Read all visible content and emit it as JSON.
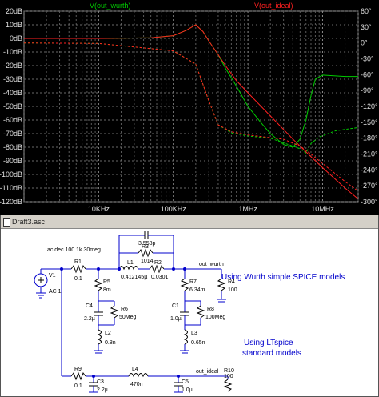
{
  "chart_data": {
    "type": "line",
    "x_scale": "log",
    "xlim": [
      "1KHz",
      "30MHz"
    ],
    "x_ticks": [
      "10KHz",
      "100KHz",
      "1MHz",
      "10MHz"
    ],
    "y_left_ticks": [
      "20dB",
      "10dB",
      "0dB",
      "-10dB",
      "-20dB",
      "-30dB",
      "-40dB",
      "-50dB",
      "-60dB",
      "-70dB",
      "-80dB",
      "-90dB",
      "-100dB",
      "-110dB",
      "-120dB"
    ],
    "y_left_range_dB": [
      -120,
      20
    ],
    "y_right_ticks": [
      "60°",
      "30°",
      "0°",
      "-30°",
      "-60°",
      "-90°",
      "-120°",
      "-150°",
      "-180°",
      "-210°",
      "-240°",
      "-270°",
      "-300°"
    ],
    "y_right_range_deg": [
      -300,
      60
    ],
    "grid": true,
    "series": [
      {
        "name": "V(out_wurth)",
        "color": "#00cc00",
        "magnitude_dB": [
          [
            1000,
            0
          ],
          [
            10000,
            0
          ],
          [
            50000,
            0.4
          ],
          [
            100000,
            2
          ],
          [
            150000,
            6
          ],
          [
            200000,
            10
          ],
          [
            250000,
            5
          ],
          [
            300000,
            -2
          ],
          [
            400000,
            -12
          ],
          [
            500000,
            -22
          ],
          [
            700000,
            -35
          ],
          [
            1000000,
            -50
          ],
          [
            1500000,
            -62
          ],
          [
            2000000,
            -70
          ],
          [
            3000000,
            -78
          ],
          [
            4000000,
            -80
          ],
          [
            5000000,
            -74
          ],
          [
            6000000,
            -60
          ],
          [
            7000000,
            -42
          ],
          [
            8000000,
            -30
          ],
          [
            10000000,
            -27
          ],
          [
            20000000,
            -28
          ],
          [
            30000000,
            -28
          ]
        ],
        "phase_deg": [
          [
            1000,
            0
          ],
          [
            10000,
            -1
          ],
          [
            100000,
            -15
          ],
          [
            200000,
            -40
          ],
          [
            300000,
            -110
          ],
          [
            400000,
            -155
          ],
          [
            600000,
            -170
          ],
          [
            1000000,
            -176
          ],
          [
            2000000,
            -180
          ],
          [
            4000000,
            -195
          ],
          [
            5000000,
            -200
          ],
          [
            6000000,
            -208
          ],
          [
            7000000,
            -190
          ],
          [
            9000000,
            -178
          ],
          [
            15000000,
            -166
          ],
          [
            30000000,
            -160
          ]
        ]
      },
      {
        "name": "V(out_ideal)",
        "color": "#ff2020",
        "magnitude_dB": [
          [
            1000,
            0
          ],
          [
            10000,
            0
          ],
          [
            50000,
            0.4
          ],
          [
            100000,
            2
          ],
          [
            150000,
            6
          ],
          [
            200000,
            10
          ],
          [
            250000,
            5
          ],
          [
            300000,
            -2
          ],
          [
            400000,
            -12
          ],
          [
            500000,
            -20
          ],
          [
            700000,
            -31
          ],
          [
            1000000,
            -40
          ],
          [
            2000000,
            -57
          ],
          [
            4000000,
            -74
          ],
          [
            7000000,
            -87
          ],
          [
            10000000,
            -95
          ],
          [
            20000000,
            -110
          ],
          [
            30000000,
            -118
          ]
        ],
        "phase_deg": [
          [
            1000,
            0
          ],
          [
            10000,
            -1
          ],
          [
            100000,
            -15
          ],
          [
            200000,
            -40
          ],
          [
            300000,
            -110
          ],
          [
            400000,
            -155
          ],
          [
            600000,
            -168
          ],
          [
            1000000,
            -174
          ],
          [
            3000000,
            -182
          ],
          [
            5000000,
            -195
          ],
          [
            7000000,
            -210
          ],
          [
            10000000,
            -228
          ],
          [
            20000000,
            -262
          ],
          [
            30000000,
            -280
          ]
        ]
      }
    ]
  },
  "schematic": {
    "window_title": "Draft3.asc",
    "sim_command": ".ac dec 100 1k 30meg",
    "labels": {
      "v1_name": "V1",
      "v1_value": "AC 1",
      "r1_name": "R1",
      "r1_value": "0.1",
      "c2_name": "C2",
      "c2_value": "3.558p",
      "r3_name": "R3",
      "r3_value": "1014",
      "l1_name": "L1",
      "l1_value": "0.412145µ",
      "r2_name": "R2",
      "r2_value": "0.0301",
      "r5_name": "R5",
      "r5_value": "8m",
      "c4_name": "C4",
      "c4_value": "2.2µ",
      "r6_name": "R6",
      "r6_value": "50Meg",
      "l2_name": "L2",
      "l2_value": "0.8n",
      "r7_name": "R7",
      "r7_value": "6.34m",
      "c1_name": "C1",
      "c1_value": "1.0µ",
      "r8_name": "R8",
      "r8_value": "100Meg",
      "l3_name": "L3",
      "l3_value": "0.65n",
      "r4_name": "R4",
      "r4_value": "100",
      "net_wurth": "out_wurth",
      "r9_name": "R9",
      "r9_value": "0.1",
      "c3_name": "C3",
      "c3_value": "2.2µ",
      "l4_name": "L4",
      "l4_value": "470n",
      "c5_name": "C5",
      "c5_value": "1.0µ",
      "r10_name": "R10",
      "r10_value": "100",
      "net_ideal": "out_ideal"
    },
    "notes": {
      "wurth": "Using Wurth simple SPICE models",
      "ltspice_line1": "Using LTspice",
      "ltspice_line2": "standard models"
    }
  }
}
